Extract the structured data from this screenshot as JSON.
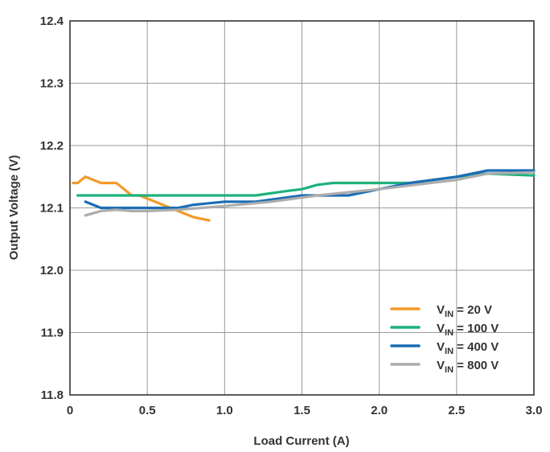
{
  "chart_data": {
    "type": "line",
    "title": "",
    "xlabel": "Load Current (A)",
    "ylabel": "Output Voltage (V)",
    "xlim": [
      0,
      3.0
    ],
    "ylim": [
      11.8,
      12.4
    ],
    "x_ticks": [
      "0",
      "0.5",
      "1.0",
      "1.5",
      "2.0",
      "2.5",
      "3.0"
    ],
    "y_ticks": [
      "11.8",
      "11.9",
      "12.0",
      "12.1",
      "12.2",
      "12.3",
      "12.4"
    ],
    "grid": true,
    "legend_position": "bottom-right",
    "series": [
      {
        "name": "V_IN = 20 V",
        "label_main": "V",
        "label_sub": "IN",
        "label_rest": " = 20 V",
        "color": "#f39a2b",
        "points": [
          [
            0.02,
            12.14
          ],
          [
            0.05,
            12.14
          ],
          [
            0.1,
            12.15
          ],
          [
            0.15,
            12.145
          ],
          [
            0.2,
            12.14
          ],
          [
            0.25,
            12.14
          ],
          [
            0.3,
            12.14
          ],
          [
            0.35,
            12.13
          ],
          [
            0.4,
            12.12
          ],
          [
            0.45,
            12.12
          ],
          [
            0.5,
            12.115
          ],
          [
            0.6,
            12.105
          ],
          [
            0.7,
            12.095
          ],
          [
            0.8,
            12.085
          ],
          [
            0.9,
            12.08
          ]
        ]
      },
      {
        "name": "V_IN = 100 V",
        "label_main": "V",
        "label_sub": "IN",
        "label_rest": " = 100 V",
        "color": "#1db27b",
        "points": [
          [
            0.05,
            12.12
          ],
          [
            0.5,
            12.12
          ],
          [
            1.0,
            12.12
          ],
          [
            1.2,
            12.12
          ],
          [
            1.4,
            12.127
          ],
          [
            1.5,
            12.13
          ],
          [
            1.6,
            12.137
          ],
          [
            1.7,
            12.14
          ],
          [
            1.8,
            12.14
          ],
          [
            2.0,
            12.14
          ],
          [
            2.2,
            12.14
          ],
          [
            2.5,
            12.15
          ],
          [
            2.7,
            12.155
          ],
          [
            3.0,
            12.152
          ]
        ]
      },
      {
        "name": "V_IN = 400 V",
        "label_main": "V",
        "label_sub": "IN",
        "label_rest": " = 400 V",
        "color": "#1b6db6",
        "points": [
          [
            0.1,
            12.11
          ],
          [
            0.15,
            12.105
          ],
          [
            0.2,
            12.1
          ],
          [
            0.4,
            12.1
          ],
          [
            0.7,
            12.1
          ],
          [
            0.8,
            12.105
          ],
          [
            1.0,
            12.11
          ],
          [
            1.2,
            12.11
          ],
          [
            1.5,
            12.12
          ],
          [
            1.8,
            12.12
          ],
          [
            2.0,
            12.13
          ],
          [
            2.2,
            12.14
          ],
          [
            2.5,
            12.15
          ],
          [
            2.7,
            12.16
          ],
          [
            3.0,
            12.16
          ]
        ]
      },
      {
        "name": "V_IN = 800 V",
        "label_main": "V",
        "label_sub": "IN",
        "label_rest": " = 800 V",
        "color": "#adadad",
        "points": [
          [
            0.1,
            12.088
          ],
          [
            0.2,
            12.095
          ],
          [
            0.3,
            12.097
          ],
          [
            0.4,
            12.095
          ],
          [
            0.5,
            12.095
          ],
          [
            0.7,
            12.097
          ],
          [
            1.0,
            12.103
          ],
          [
            1.3,
            12.11
          ],
          [
            1.6,
            12.12
          ],
          [
            2.0,
            12.13
          ],
          [
            2.5,
            12.145
          ],
          [
            2.7,
            12.155
          ],
          [
            3.0,
            12.157
          ]
        ]
      }
    ]
  }
}
